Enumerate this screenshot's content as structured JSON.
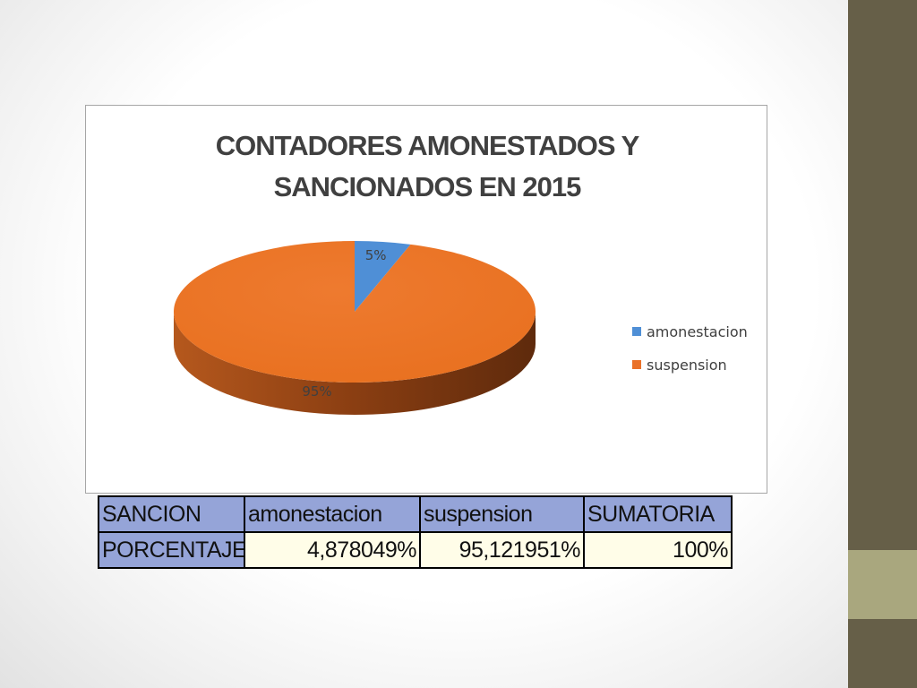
{
  "chart_data": {
    "type": "pie",
    "title_lines": [
      "CONTADORES AMONESTADOS Y",
      "SANCIONADOS EN 2015"
    ],
    "slices": [
      {
        "label": "amonestacion",
        "value": 5,
        "display": "5%",
        "color": "#4f8fd6"
      },
      {
        "label": "suspension",
        "value": 95,
        "display": "95%",
        "color": "#ea7129"
      }
    ],
    "style": "3d",
    "legend_position": "right"
  },
  "table": {
    "headers": [
      "SANCION",
      "amonestacion",
      "suspension",
      "SUMATORIA"
    ],
    "row_label": "PORCENTAJE",
    "values": [
      "4,878049%",
      "95,121951%",
      "100%"
    ]
  },
  "colors": {
    "sidebar": "#665f48",
    "sidebar_accent": "#a9a77e",
    "table_header": "#95a4d8",
    "table_cell": "#fffde8"
  }
}
